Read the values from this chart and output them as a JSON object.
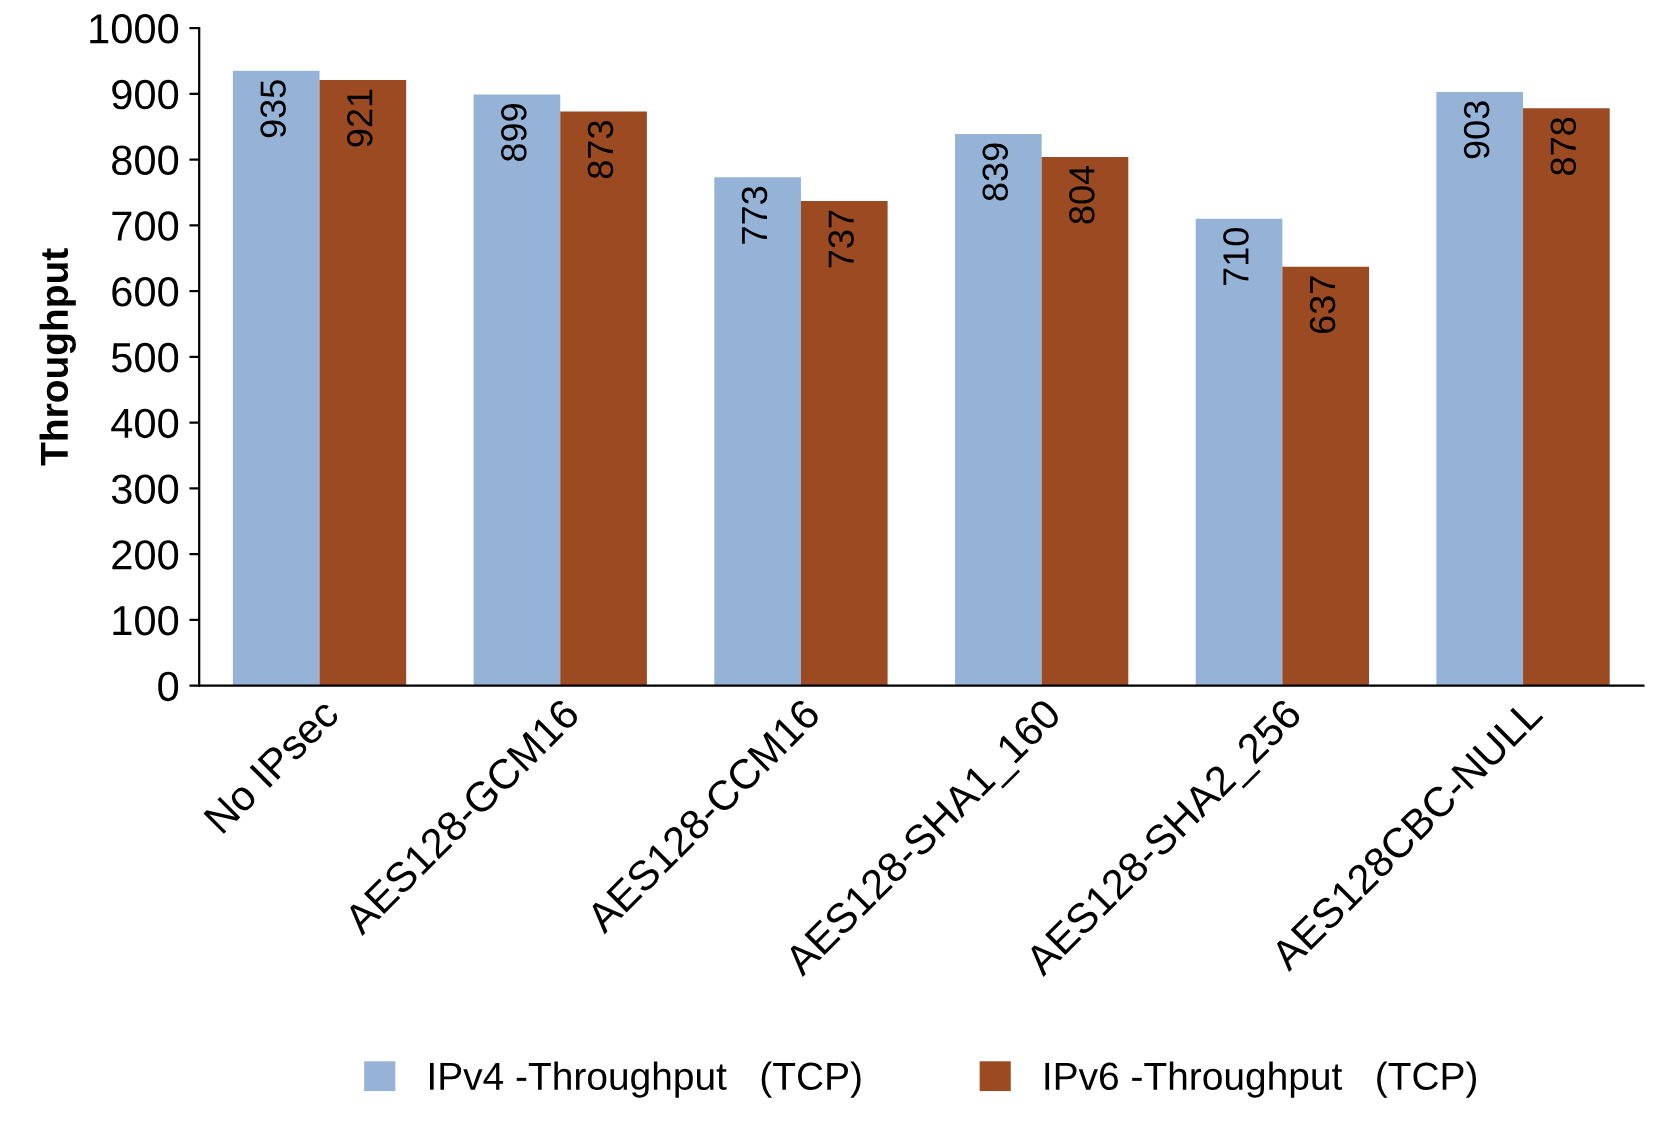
{
  "chart_data": {
    "type": "bar",
    "ylabel": "Throughput",
    "categories": [
      "No IPsec",
      "AES128-GCM16",
      "AES128-CCM16",
      "AES128-SHA1_160",
      "AES128-SHA2_256",
      "AES128CBC-NULL"
    ],
    "series": [
      {
        "name": "IPv4 -Throughput   (TCP)",
        "color": "#95b3d7",
        "values": [
          935,
          899,
          773,
          839,
          710,
          903
        ]
      },
      {
        "name": "IPv6 -Throughput   (TCP)",
        "color": "#9c4a22",
        "values": [
          921,
          873,
          737,
          804,
          637,
          878
        ]
      }
    ],
    "ylim": [
      0,
      1000
    ],
    "yticks": [
      0,
      100,
      200,
      300,
      400,
      500,
      600,
      700,
      800,
      900,
      1000
    ],
    "grid": false,
    "legend": "bottom",
    "data_labels": true
  }
}
